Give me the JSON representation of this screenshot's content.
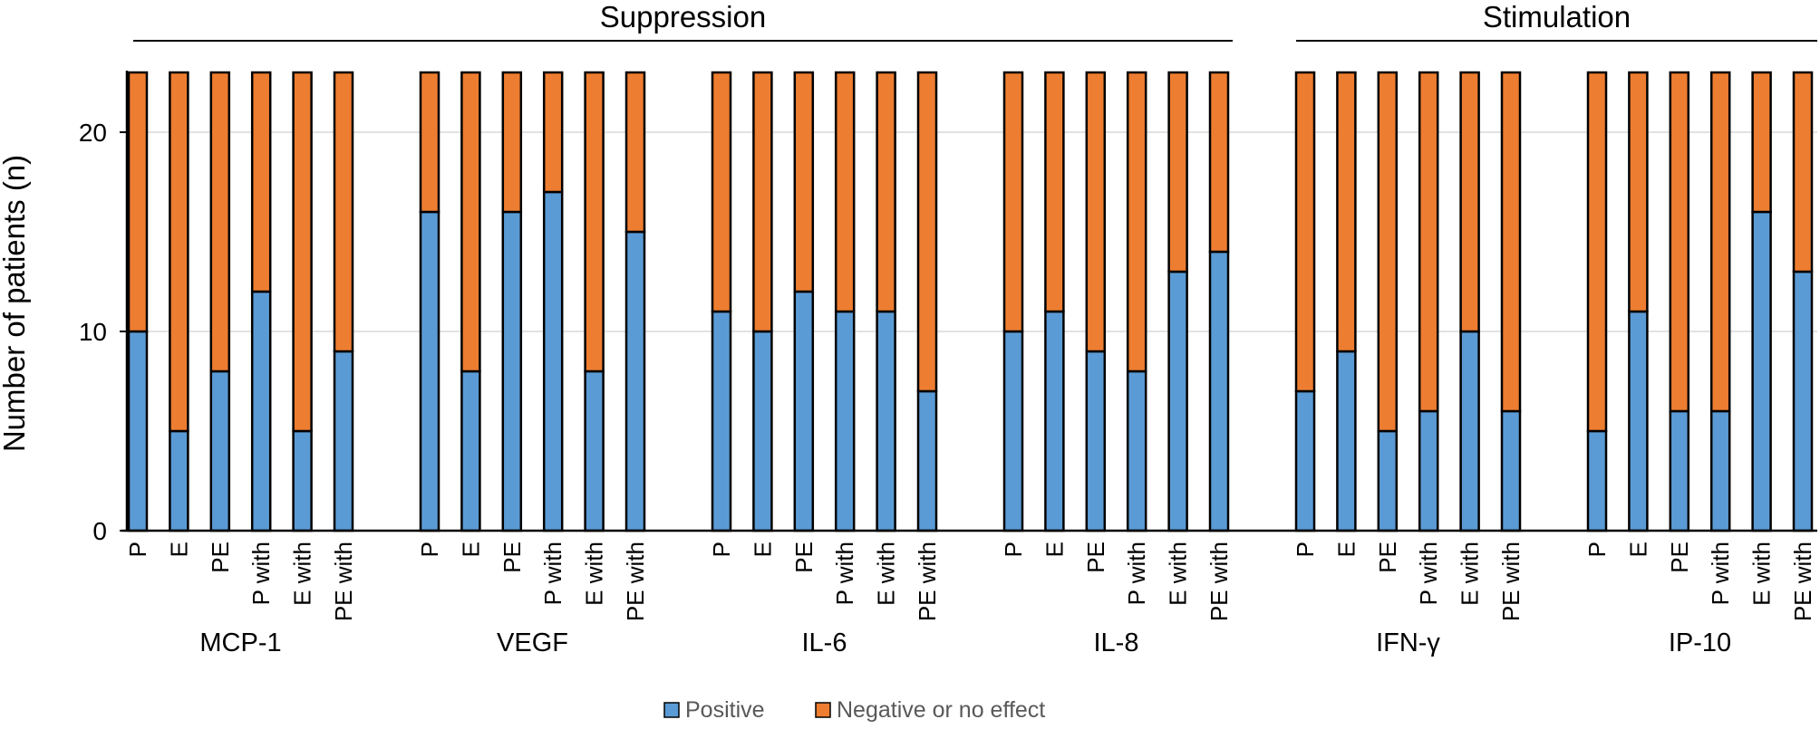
{
  "chart_data": {
    "type": "bar",
    "stacked": true,
    "ylabel": "Number of patients (n)",
    "ylim": [
      0,
      23
    ],
    "yticks": [
      0,
      10,
      20
    ],
    "grid": true,
    "legend_position": "bottom",
    "sections": [
      {
        "label": "Suppression",
        "groups": [
          "MCP-1",
          "VEGF",
          "IL-6",
          "IL-8"
        ]
      },
      {
        "label": "Stimulation",
        "groups": [
          "IFN-γ",
          "IP-10"
        ]
      }
    ],
    "bar_labels": [
      "P",
      "E",
      "PE",
      "P with",
      "E with",
      "PE with"
    ],
    "series": [
      {
        "name": "Positive",
        "color": "#5b9bd5"
      },
      {
        "name": "Negative or no effect",
        "color": "#ed7d31"
      }
    ],
    "groups": [
      {
        "name": "MCP-1",
        "positive": [
          10,
          5,
          8,
          12,
          5,
          9
        ],
        "negative": [
          13,
          18,
          15,
          11,
          18,
          14
        ]
      },
      {
        "name": "VEGF",
        "positive": [
          16,
          8,
          16,
          17,
          8,
          15
        ],
        "negative": [
          7,
          15,
          7,
          6,
          15,
          8
        ]
      },
      {
        "name": "IL-6",
        "positive": [
          11,
          10,
          12,
          11,
          11,
          7
        ],
        "negative": [
          12,
          13,
          11,
          12,
          12,
          16
        ]
      },
      {
        "name": "IL-8",
        "positive": [
          10,
          11,
          9,
          8,
          13,
          14
        ],
        "negative": [
          13,
          12,
          14,
          15,
          10,
          9
        ]
      },
      {
        "name": "IFN-γ",
        "positive": [
          7,
          9,
          5,
          6,
          10,
          6
        ],
        "negative": [
          16,
          14,
          18,
          17,
          13,
          17
        ]
      },
      {
        "name": "IP-10",
        "positive": [
          5,
          11,
          6,
          6,
          16,
          13
        ],
        "negative": [
          18,
          12,
          17,
          17,
          7,
          10
        ]
      }
    ]
  }
}
